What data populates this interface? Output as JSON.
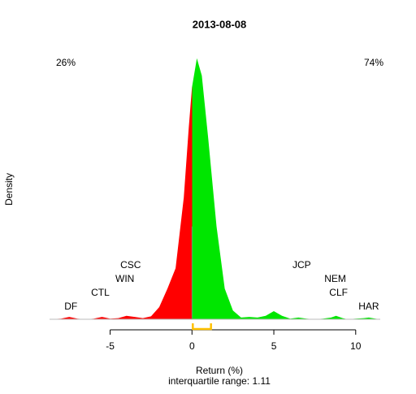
{
  "chart_data": {
    "type": "density",
    "title": "2013-08-08",
    "xlabel": "Return (%)",
    "ylabel": "Density",
    "subtitle": "interquartile range: 1.11",
    "x": [
      -8.7,
      -8,
      -7.5,
      -7,
      -6.5,
      -6,
      -5.5,
      -5,
      -4.5,
      -4,
      -3.5,
      -3,
      -2.5,
      -2,
      -1.5,
      -1,
      -0.5,
      -0.2,
      0,
      0.3,
      0.6,
      1,
      1.5,
      2,
      2.5,
      3,
      3.5,
      4,
      4.5,
      5,
      5.5,
      6,
      6.5,
      7,
      7.5,
      8,
      8.5,
      8.8,
      9.2,
      9.5,
      10,
      10.5,
      10.8,
      11.2,
      11.5
    ],
    "values": [
      0,
      0.001,
      0.004,
      0.001,
      0,
      0.001,
      0.004,
      0.001,
      0.002,
      0.006,
      0.004,
      0.002,
      0.005,
      0.021,
      0.053,
      0.088,
      0.21,
      0.33,
      0.4,
      0.45,
      0.42,
      0.31,
      0.16,
      0.053,
      0.015,
      0.003,
      0.004,
      0.003,
      0.006,
      0.014,
      0.006,
      0.001,
      0.003,
      0.001,
      0,
      0.001,
      0.003,
      0.006,
      0.002,
      0,
      0.001,
      0.002,
      0.003,
      0.001,
      0
    ],
    "split": 0,
    "negative_color": "#ff0000",
    "positive_color": "#00e600",
    "negative_share": "26%",
    "positive_share": "74%",
    "quartiles": [
      0.05,
      1.16
    ],
    "quartile_color": "#ffc000",
    "annotations": [
      {
        "text": "DF",
        "x": -7.4
      },
      {
        "text": "CTL",
        "x": -5.6
      },
      {
        "text": "WIN",
        "x": -4.1
      },
      {
        "text": "CSC",
        "x": -3.75
      },
      {
        "text": "JCP",
        "x": 6.7
      },
      {
        "text": "NEM",
        "x": 8.75
      },
      {
        "text": "CLF",
        "x": 8.95
      },
      {
        "text": "HAR",
        "x": 10.8
      }
    ],
    "xlim": [
      -8.7,
      11.5
    ],
    "ylim": [
      0,
      0.5
    ],
    "xticks": [
      -5,
      0,
      5,
      10
    ]
  }
}
